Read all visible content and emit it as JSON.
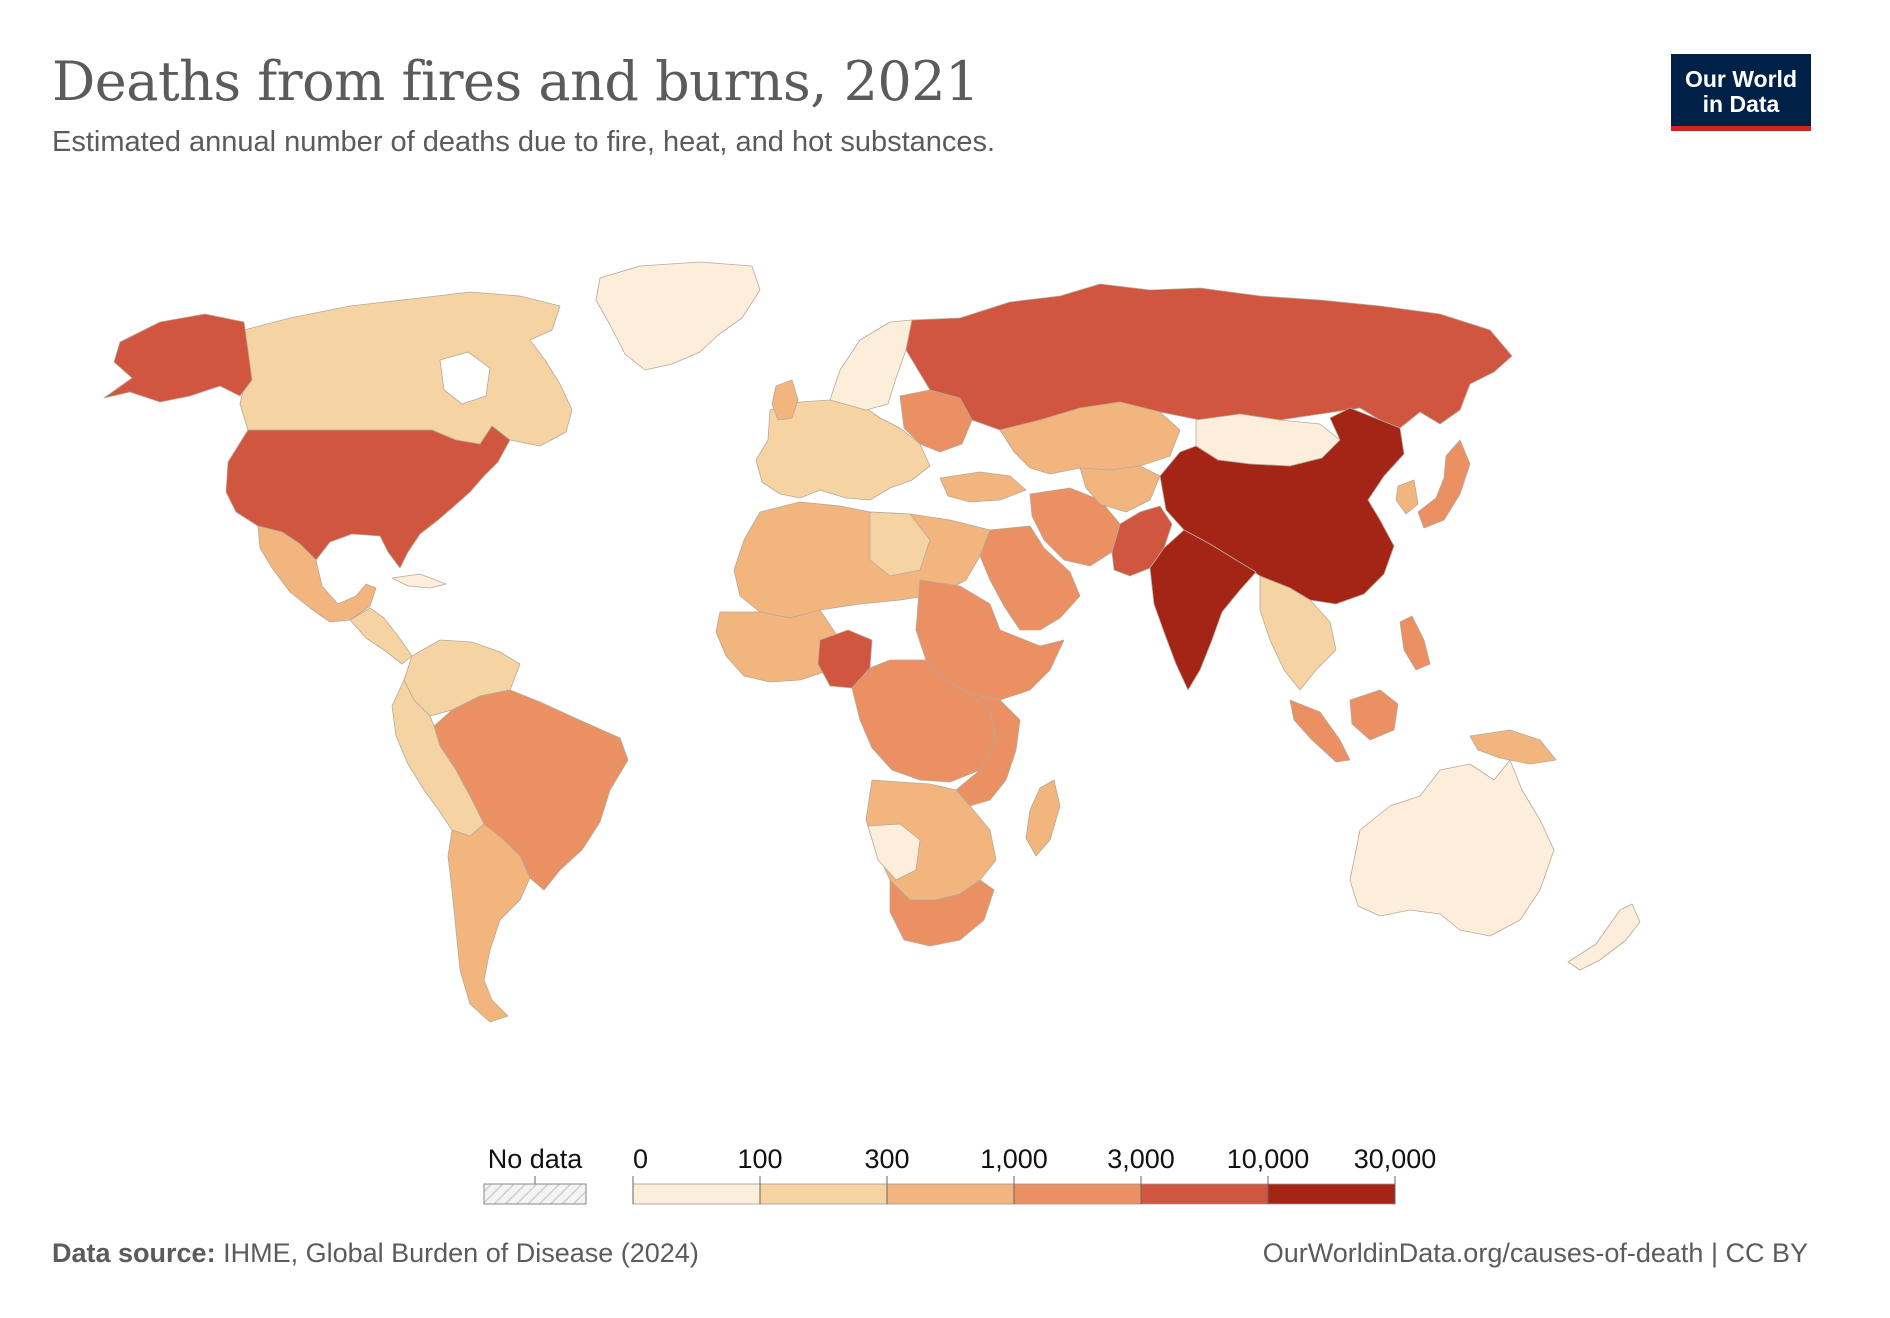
{
  "header": {
    "title": "Deaths from fires and burns, 2021",
    "subtitle": "Estimated annual number of deaths due to fire, heat, and hot substances."
  },
  "logo": {
    "line1": "Our World",
    "line2": "in Data",
    "bg_color": "#002147",
    "accent_color": "#ce261e"
  },
  "legend": {
    "no_data_label": "No data",
    "ticks": [
      "0",
      "100",
      "300",
      "1,000",
      "3,000",
      "10,000",
      "30,000"
    ],
    "bins": [
      {
        "min": 0,
        "max": 100,
        "color": "#fdeedb"
      },
      {
        "min": 100,
        "max": 300,
        "color": "#f6d3a3"
      },
      {
        "min": 300,
        "max": 1000,
        "color": "#f2b57d"
      },
      {
        "min": 1000,
        "max": 3000,
        "color": "#ea9062"
      },
      {
        "min": 3000,
        "max": 10000,
        "color": "#d1563f"
      },
      {
        "min": 10000,
        "max": 30000,
        "color": "#a42416"
      }
    ]
  },
  "map_data": {
    "type": "choropleth",
    "year": 2021,
    "regions": [
      {
        "name": "Canada",
        "bin": 1
      },
      {
        "name": "United States",
        "bin": 4
      },
      {
        "name": "Mexico",
        "bin": 2
      },
      {
        "name": "Greenland",
        "bin": 0
      },
      {
        "name": "Brazil",
        "bin": 3
      },
      {
        "name": "Argentina",
        "bin": 2
      },
      {
        "name": "Russia",
        "bin": 4
      },
      {
        "name": "China",
        "bin": 5
      },
      {
        "name": "India",
        "bin": 5
      },
      {
        "name": "Pakistan",
        "bin": 4
      },
      {
        "name": "Nigeria",
        "bin": 4
      },
      {
        "name": "Australia",
        "bin": 0
      },
      {
        "name": "Indonesia",
        "bin": 3
      },
      {
        "name": "Japan",
        "bin": 3
      },
      {
        "name": "South Africa",
        "bin": 3
      },
      {
        "name": "Madagascar",
        "bin": 2
      },
      {
        "name": "Iran",
        "bin": 3
      },
      {
        "name": "Saudi Arabia",
        "bin": 3
      },
      {
        "name": "Sudan",
        "bin": 3
      },
      {
        "name": "DR Congo",
        "bin": 3
      },
      {
        "name": "Algeria",
        "bin": 2
      },
      {
        "name": "Kazakhstan",
        "bin": 2
      },
      {
        "name": "Mongolia",
        "bin": 0
      },
      {
        "name": "Ethiopia",
        "bin": 3
      }
    ]
  },
  "footer": {
    "source_label": "Data source:",
    "source_text": "IHME, Global Burden of Disease (2024)",
    "url_text": "OurWorldinData.org/causes-of-death",
    "license_text": "| CC BY"
  }
}
